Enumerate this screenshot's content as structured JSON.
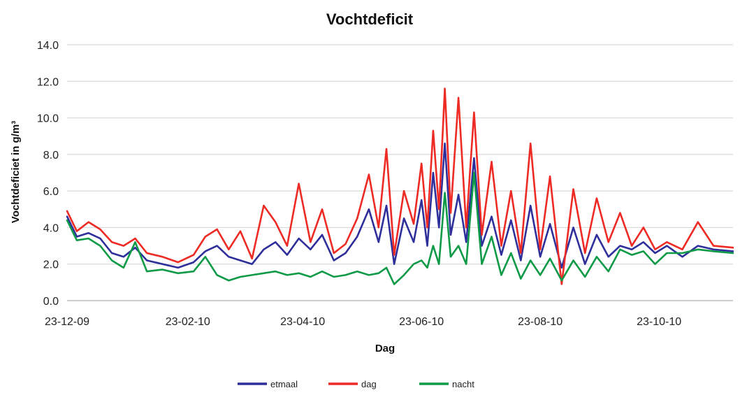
{
  "chart_data": {
    "type": "line",
    "title": "Vochtdeficit",
    "xlabel": "Dag",
    "ylabel": "Vochtdeficiet in g/m³",
    "ylim": [
      0,
      14
    ],
    "yticks": [
      "0.0",
      "2.0",
      "4.0",
      "6.0",
      "8.0",
      "10.0",
      "12.0",
      "14.0"
    ],
    "x_start": "2009-12-23",
    "x_end": "2010-11-30",
    "xticks": [
      {
        "label": "23-12-09",
        "date": "2009-12-23"
      },
      {
        "label": "23-02-10",
        "date": "2010-02-23"
      },
      {
        "label": "23-04-10",
        "date": "2010-04-23"
      },
      {
        "label": "23-06-10",
        "date": "2010-06-23"
      },
      {
        "label": "23-08-10",
        "date": "2010-08-23"
      },
      {
        "label": "23-10-10",
        "date": "2010-10-23"
      }
    ],
    "grid": "horizontal",
    "legend_position": "bottom",
    "series": [
      {
        "name": "etmaal",
        "color": "#2e2f9b",
        "points": [
          [
            "2009-12-23",
            4.6
          ],
          [
            "2009-12-28",
            3.5
          ],
          [
            "2010-01-03",
            3.7
          ],
          [
            "2010-01-09",
            3.4
          ],
          [
            "2010-01-15",
            2.6
          ],
          [
            "2010-01-21",
            2.4
          ],
          [
            "2010-01-27",
            2.9
          ],
          [
            "2010-02-02",
            2.2
          ],
          [
            "2010-02-10",
            2.0
          ],
          [
            "2010-02-18",
            1.8
          ],
          [
            "2010-02-26",
            2.1
          ],
          [
            "2010-03-04",
            2.7
          ],
          [
            "2010-03-10",
            3.0
          ],
          [
            "2010-03-16",
            2.4
          ],
          [
            "2010-03-22",
            2.2
          ],
          [
            "2010-03-28",
            2.0
          ],
          [
            "2010-04-03",
            2.8
          ],
          [
            "2010-04-09",
            3.2
          ],
          [
            "2010-04-15",
            2.5
          ],
          [
            "2010-04-21",
            3.4
          ],
          [
            "2010-04-27",
            2.8
          ],
          [
            "2010-05-03",
            3.6
          ],
          [
            "2010-05-09",
            2.2
          ],
          [
            "2010-05-15",
            2.6
          ],
          [
            "2010-05-21",
            3.5
          ],
          [
            "2010-05-27",
            5.0
          ],
          [
            "2010-06-01",
            3.2
          ],
          [
            "2010-06-05",
            5.2
          ],
          [
            "2010-06-09",
            2.0
          ],
          [
            "2010-06-14",
            4.5
          ],
          [
            "2010-06-19",
            3.2
          ],
          [
            "2010-06-23",
            5.5
          ],
          [
            "2010-06-26",
            3.0
          ],
          [
            "2010-06-29",
            7.0
          ],
          [
            "2010-07-02",
            4.0
          ],
          [
            "2010-07-05",
            8.6
          ],
          [
            "2010-07-08",
            3.6
          ],
          [
            "2010-07-12",
            5.8
          ],
          [
            "2010-07-16",
            3.2
          ],
          [
            "2010-07-20",
            7.8
          ],
          [
            "2010-07-24",
            3.0
          ],
          [
            "2010-07-29",
            4.6
          ],
          [
            "2010-08-03",
            2.5
          ],
          [
            "2010-08-08",
            4.4
          ],
          [
            "2010-08-13",
            2.2
          ],
          [
            "2010-08-18",
            5.2
          ],
          [
            "2010-08-23",
            2.4
          ],
          [
            "2010-08-28",
            4.2
          ],
          [
            "2010-09-03",
            1.8
          ],
          [
            "2010-09-09",
            4.0
          ],
          [
            "2010-09-15",
            2.0
          ],
          [
            "2010-09-21",
            3.6
          ],
          [
            "2010-09-27",
            2.4
          ],
          [
            "2010-10-03",
            3.0
          ],
          [
            "2010-10-09",
            2.8
          ],
          [
            "2010-10-15",
            3.2
          ],
          [
            "2010-10-21",
            2.6
          ],
          [
            "2010-10-27",
            3.0
          ],
          [
            "2010-11-04",
            2.4
          ],
          [
            "2010-11-12",
            3.0
          ],
          [
            "2010-11-20",
            2.8
          ],
          [
            "2010-11-30",
            2.7
          ]
        ]
      },
      {
        "name": "dag",
        "color": "#ee2a24",
        "points": [
          [
            "2009-12-23",
            4.9
          ],
          [
            "2009-12-28",
            3.8
          ],
          [
            "2010-01-03",
            4.3
          ],
          [
            "2010-01-09",
            3.9
          ],
          [
            "2010-01-15",
            3.2
          ],
          [
            "2010-01-21",
            3.0
          ],
          [
            "2010-01-27",
            3.4
          ],
          [
            "2010-02-02",
            2.6
          ],
          [
            "2010-02-10",
            2.4
          ],
          [
            "2010-02-18",
            2.1
          ],
          [
            "2010-02-26",
            2.5
          ],
          [
            "2010-03-04",
            3.5
          ],
          [
            "2010-03-10",
            3.9
          ],
          [
            "2010-03-16",
            2.8
          ],
          [
            "2010-03-22",
            3.8
          ],
          [
            "2010-03-28",
            2.3
          ],
          [
            "2010-04-03",
            5.2
          ],
          [
            "2010-04-09",
            4.3
          ],
          [
            "2010-04-15",
            3.0
          ],
          [
            "2010-04-21",
            6.4
          ],
          [
            "2010-04-27",
            3.2
          ],
          [
            "2010-05-03",
            5.0
          ],
          [
            "2010-05-09",
            2.6
          ],
          [
            "2010-05-15",
            3.1
          ],
          [
            "2010-05-21",
            4.5
          ],
          [
            "2010-05-27",
            6.9
          ],
          [
            "2010-06-01",
            4.0
          ],
          [
            "2010-06-05",
            8.3
          ],
          [
            "2010-06-09",
            2.5
          ],
          [
            "2010-06-14",
            6.0
          ],
          [
            "2010-06-19",
            4.2
          ],
          [
            "2010-06-23",
            7.5
          ],
          [
            "2010-06-26",
            4.0
          ],
          [
            "2010-06-29",
            9.3
          ],
          [
            "2010-07-02",
            5.0
          ],
          [
            "2010-07-05",
            11.6
          ],
          [
            "2010-07-08",
            4.8
          ],
          [
            "2010-07-12",
            11.1
          ],
          [
            "2010-07-16",
            4.0
          ],
          [
            "2010-07-20",
            10.3
          ],
          [
            "2010-07-24",
            3.6
          ],
          [
            "2010-07-29",
            7.6
          ],
          [
            "2010-08-03",
            3.0
          ],
          [
            "2010-08-08",
            6.0
          ],
          [
            "2010-08-13",
            2.6
          ],
          [
            "2010-08-18",
            8.6
          ],
          [
            "2010-08-23",
            2.8
          ],
          [
            "2010-08-28",
            6.8
          ],
          [
            "2010-09-03",
            0.9
          ],
          [
            "2010-09-09",
            6.1
          ],
          [
            "2010-09-15",
            2.6
          ],
          [
            "2010-09-21",
            5.6
          ],
          [
            "2010-09-27",
            3.2
          ],
          [
            "2010-10-03",
            4.8
          ],
          [
            "2010-10-09",
            3.0
          ],
          [
            "2010-10-15",
            4.0
          ],
          [
            "2010-10-21",
            2.8
          ],
          [
            "2010-10-27",
            3.2
          ],
          [
            "2010-11-04",
            2.8
          ],
          [
            "2010-11-12",
            4.3
          ],
          [
            "2010-11-20",
            3.0
          ],
          [
            "2010-11-30",
            2.9
          ]
        ]
      },
      {
        "name": "nacht",
        "color": "#0f9a47",
        "points": [
          [
            "2009-12-23",
            4.4
          ],
          [
            "2009-12-28",
            3.3
          ],
          [
            "2010-01-03",
            3.4
          ],
          [
            "2010-01-09",
            3.0
          ],
          [
            "2010-01-15",
            2.2
          ],
          [
            "2010-01-21",
            1.8
          ],
          [
            "2010-01-27",
            3.2
          ],
          [
            "2010-02-02",
            1.6
          ],
          [
            "2010-02-10",
            1.7
          ],
          [
            "2010-02-18",
            1.5
          ],
          [
            "2010-02-26",
            1.6
          ],
          [
            "2010-03-04",
            2.4
          ],
          [
            "2010-03-10",
            1.4
          ],
          [
            "2010-03-16",
            1.1
          ],
          [
            "2010-03-22",
            1.3
          ],
          [
            "2010-03-28",
            1.4
          ],
          [
            "2010-04-03",
            1.5
          ],
          [
            "2010-04-09",
            1.6
          ],
          [
            "2010-04-15",
            1.4
          ],
          [
            "2010-04-21",
            1.5
          ],
          [
            "2010-04-27",
            1.3
          ],
          [
            "2010-05-03",
            1.6
          ],
          [
            "2010-05-09",
            1.3
          ],
          [
            "2010-05-15",
            1.4
          ],
          [
            "2010-05-21",
            1.6
          ],
          [
            "2010-05-27",
            1.4
          ],
          [
            "2010-06-01",
            1.5
          ],
          [
            "2010-06-05",
            1.8
          ],
          [
            "2010-06-09",
            0.9
          ],
          [
            "2010-06-14",
            1.4
          ],
          [
            "2010-06-19",
            2.0
          ],
          [
            "2010-06-23",
            2.2
          ],
          [
            "2010-06-26",
            1.8
          ],
          [
            "2010-06-29",
            3.0
          ],
          [
            "2010-07-02",
            2.0
          ],
          [
            "2010-07-05",
            5.9
          ],
          [
            "2010-07-08",
            2.4
          ],
          [
            "2010-07-12",
            3.0
          ],
          [
            "2010-07-16",
            2.0
          ],
          [
            "2010-07-20",
            7.0
          ],
          [
            "2010-07-24",
            2.0
          ],
          [
            "2010-07-29",
            3.5
          ],
          [
            "2010-08-03",
            1.4
          ],
          [
            "2010-08-08",
            2.6
          ],
          [
            "2010-08-13",
            1.2
          ],
          [
            "2010-08-18",
            2.2
          ],
          [
            "2010-08-23",
            1.4
          ],
          [
            "2010-08-28",
            2.3
          ],
          [
            "2010-09-03",
            1.1
          ],
          [
            "2010-09-09",
            2.2
          ],
          [
            "2010-09-15",
            1.3
          ],
          [
            "2010-09-21",
            2.4
          ],
          [
            "2010-09-27",
            1.6
          ],
          [
            "2010-10-03",
            2.8
          ],
          [
            "2010-10-09",
            2.5
          ],
          [
            "2010-10-15",
            2.7
          ],
          [
            "2010-10-21",
            2.0
          ],
          [
            "2010-10-27",
            2.6
          ],
          [
            "2010-11-04",
            2.6
          ],
          [
            "2010-11-12",
            2.8
          ],
          [
            "2010-11-20",
            2.7
          ],
          [
            "2010-11-30",
            2.6
          ]
        ]
      }
    ]
  }
}
